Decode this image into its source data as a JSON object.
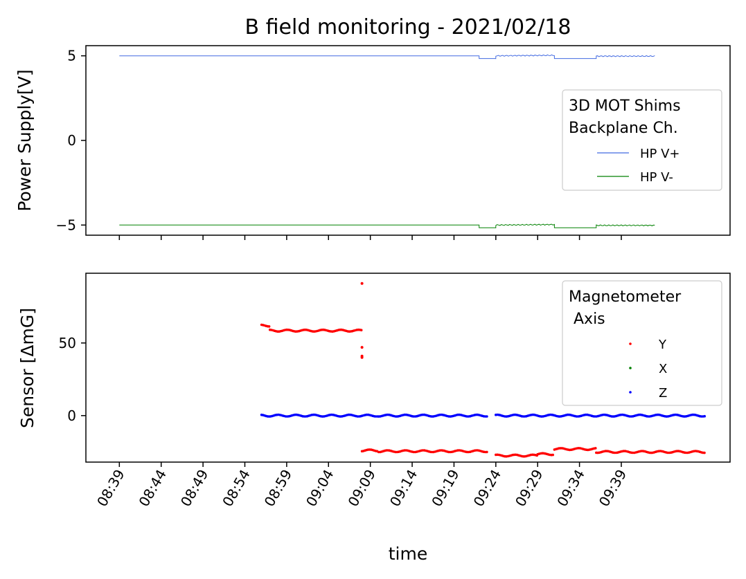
{
  "chart_data": [
    {
      "type": "line",
      "title": "B field monitoring - 2021/02/18",
      "xlabel": "",
      "ylabel": "Power Supply[V]",
      "ylim": [
        -5.6,
        5.6
      ],
      "yticks": [
        5,
        0,
        -5
      ],
      "ytick_labels": [
        "5",
        "0",
        "−5"
      ],
      "xlim": [
        "08:35",
        "09:52"
      ],
      "legend": {
        "title_lines": [
          "3D MOT Shims",
          "Backplane Ch."
        ],
        "placement": "center-right"
      },
      "series": [
        {
          "name": "HP V+",
          "color": "#4169e1",
          "points": [
            [
              "08:39",
              5.0
            ],
            [
              "09:22",
              5.0
            ],
            [
              "09:22",
              4.84
            ],
            [
              "09:24",
              4.84
            ],
            [
              "09:24",
              5.0
            ],
            [
              "09:31",
              5.03
            ],
            [
              "09:31",
              4.84
            ],
            [
              "09:36",
              4.84
            ],
            [
              "09:36",
              4.98
            ],
            [
              "09:43",
              4.98
            ]
          ]
        },
        {
          "name": "HP V-",
          "color": "#008000",
          "points": [
            [
              "08:39",
              -5.0
            ],
            [
              "09:22",
              -5.0
            ],
            [
              "09:22",
              -5.16
            ],
            [
              "09:24",
              -5.16
            ],
            [
              "09:24",
              -5.0
            ],
            [
              "09:31",
              -4.97
            ],
            [
              "09:31",
              -5.16
            ],
            [
              "09:36",
              -5.16
            ],
            [
              "09:36",
              -5.02
            ],
            [
              "09:43",
              -5.02
            ]
          ]
        }
      ]
    },
    {
      "type": "scatter",
      "title": "",
      "xlabel": "time",
      "ylabel": "Sensor [ΔmG]",
      "ylim": [
        -32,
        98
      ],
      "yticks": [
        50,
        0
      ],
      "ytick_labels": [
        "50",
        "0"
      ],
      "xlim": [
        "08:35",
        "09:52"
      ],
      "xtick_labels": [
        "08:39",
        "08:44",
        "08:49",
        "08:54",
        "08:59",
        "09:04",
        "09:09",
        "09:14",
        "09:19",
        "09:24",
        "09:29",
        "09:34",
        "09:39"
      ],
      "legend": {
        "title_lines": [
          "Magnetometer",
          " Axis"
        ],
        "placement": "upper-right"
      },
      "series": [
        {
          "name": "Y",
          "color": "#ff0000",
          "segments": [
            {
              "start": "08:56",
              "end": "08:57",
              "value": 62
            },
            {
              "start": "08:57",
              "end": "09:08",
              "value": 58.5
            },
            {
              "start": "09:08",
              "end": "09:10",
              "value": -24
            },
            {
              "start": "09:10",
              "end": "09:23",
              "value": -24.5
            },
            {
              "start": "09:24",
              "end": "09:29",
              "value": -27.5
            },
            {
              "start": "09:29",
              "end": "09:31",
              "value": -26.5
            },
            {
              "start": "09:31",
              "end": "09:36",
              "value": -23
            },
            {
              "start": "09:36",
              "end": "09:49",
              "value": -25
            }
          ],
          "outliers": [
            [
              "09:08",
              91
            ],
            [
              "09:08",
              47
            ],
            [
              "09:08",
              41
            ],
            [
              "09:08",
              40
            ]
          ]
        },
        {
          "name": "X",
          "color": "#008000",
          "segments": []
        },
        {
          "name": "Z",
          "color": "#0000ff",
          "segments": [
            {
              "start": "08:56",
              "end": "09:10",
              "value": 0
            },
            {
              "start": "09:10",
              "end": "09:23",
              "value": 0
            },
            {
              "start": "09:24",
              "end": "09:49",
              "value": 0
            }
          ]
        }
      ]
    }
  ]
}
